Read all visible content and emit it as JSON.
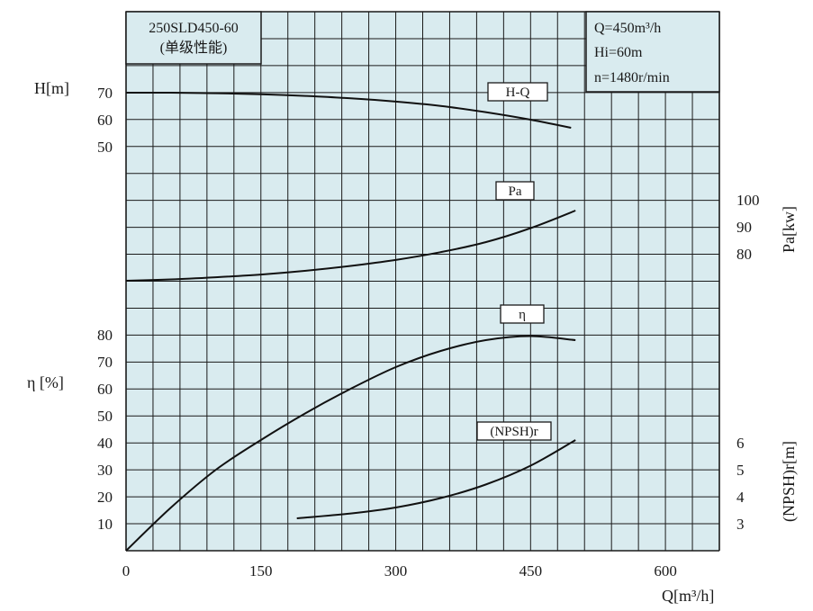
{
  "colors": {
    "plot_bg": "#d9ebef",
    "grid": "#1a1a1a",
    "curve": "#111111"
  },
  "info_left": {
    "line1": "250SLD450-60",
    "line2": "(单级性能)"
  },
  "info_right": {
    "q": "Q=450m³/h",
    "hi": "Hi=60m",
    "n": "n=1480r/min"
  },
  "chart_data": {
    "type": "line",
    "x_axis": {
      "label": "Q[m³/h]",
      "ticks": [
        0,
        150,
        300,
        450,
        600
      ],
      "range": [
        0,
        660
      ],
      "unit": "m³/h"
    },
    "y_axes": {
      "head": {
        "label": "H[m]",
        "ticks": [
          70,
          60,
          50
        ],
        "side": "left"
      },
      "power": {
        "label": "Pa[kw]",
        "ticks": [
          100,
          90,
          80
        ],
        "side": "right"
      },
      "efficiency": {
        "label": "η [%]",
        "ticks": [
          80,
          70,
          60,
          50,
          40,
          30,
          20,
          10
        ],
        "side": "left"
      },
      "npsh": {
        "label": "(NPSH)r[m]",
        "ticks": [
          6,
          5,
          4,
          3
        ],
        "side": "right"
      }
    },
    "grid": true,
    "series": [
      {
        "name": "H-Q",
        "axis": "head",
        "points": [
          [
            0,
            70
          ],
          [
            50,
            70
          ],
          [
            100,
            69.8
          ],
          [
            150,
            69.4
          ],
          [
            200,
            68.8
          ],
          [
            250,
            67.9
          ],
          [
            300,
            66.7
          ],
          [
            350,
            65.1
          ],
          [
            400,
            62.8
          ],
          [
            450,
            60
          ],
          [
            495,
            57
          ]
        ]
      },
      {
        "name": "Pa",
        "axis": "power",
        "points": [
          [
            0,
            70
          ],
          [
            50,
            70.5
          ],
          [
            100,
            71.3
          ],
          [
            150,
            72.3
          ],
          [
            200,
            73.7
          ],
          [
            250,
            75.5
          ],
          [
            300,
            77.7
          ],
          [
            350,
            80.6
          ],
          [
            400,
            84.3
          ],
          [
            450,
            89.5
          ],
          [
            500,
            96
          ]
        ]
      },
      {
        "name": "η",
        "axis": "efficiency",
        "points": [
          [
            0,
            0
          ],
          [
            50,
            16
          ],
          [
            100,
            30
          ],
          [
            150,
            41
          ],
          [
            200,
            51
          ],
          [
            250,
            60
          ],
          [
            300,
            68
          ],
          [
            350,
            74
          ],
          [
            400,
            78
          ],
          [
            450,
            79.5
          ],
          [
            500,
            78
          ]
        ]
      },
      {
        "name": "(NPSH)r",
        "axis": "npsh",
        "points": [
          [
            190,
            3.2
          ],
          [
            250,
            3.38
          ],
          [
            300,
            3.6
          ],
          [
            350,
            3.95
          ],
          [
            400,
            4.45
          ],
          [
            450,
            5.15
          ],
          [
            500,
            6.1
          ]
        ]
      }
    ]
  }
}
